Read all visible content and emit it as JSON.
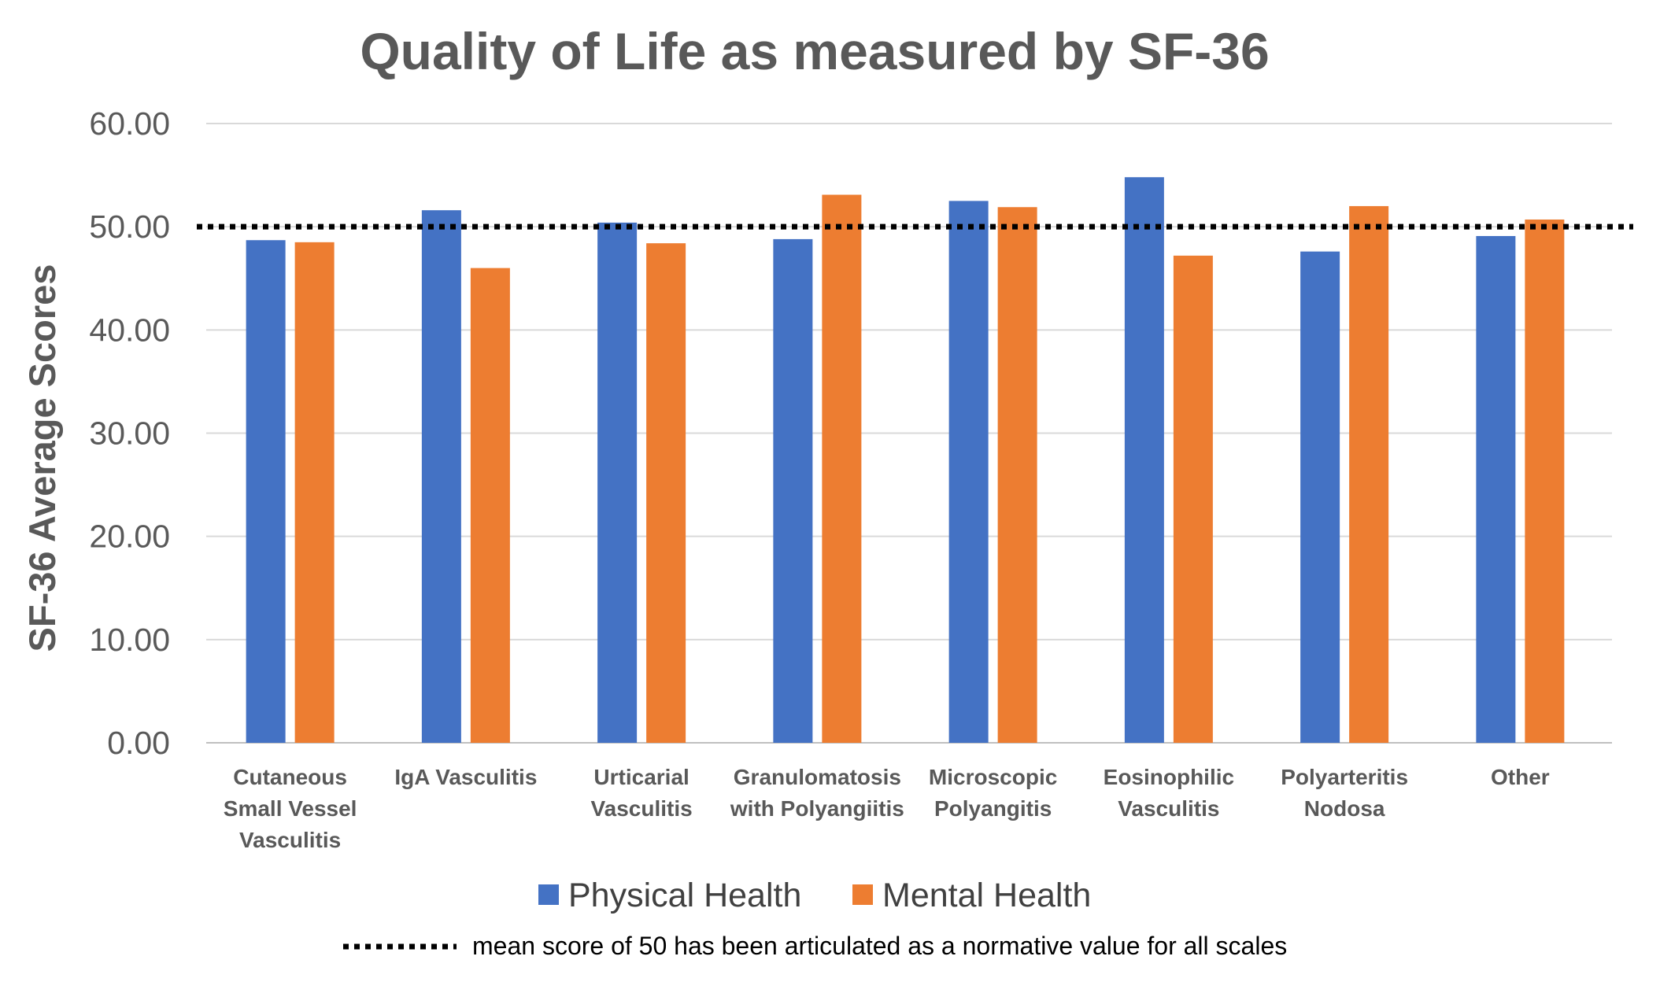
{
  "chart_data": {
    "type": "bar",
    "title": "Quality of Life as measured by SF-36",
    "xlabel": "",
    "ylabel": "SF-36 Average Scores",
    "ylim": [
      0,
      60
    ],
    "yticks": [
      "0.00",
      "10.00",
      "20.00",
      "30.00",
      "40.00",
      "50.00",
      "60.00"
    ],
    "grid": true,
    "legend_position": "bottom",
    "categories": [
      [
        "Cutaneous",
        "Small Vessel",
        "Vasculitis"
      ],
      [
        "IgA Vasculitis"
      ],
      [
        "Urticarial",
        "Vasculitis"
      ],
      [
        "Granulomatosis",
        "with Polyangiitis"
      ],
      [
        "Microscopic",
        "Polyangitis"
      ],
      [
        "Eosinophilic",
        "Vasculitis"
      ],
      [
        "Polyarteritis",
        "Nodosa"
      ],
      [
        "Other"
      ]
    ],
    "series": [
      {
        "name": "Physical Health",
        "color": "#4472C4",
        "values": [
          48.7,
          51.6,
          50.4,
          48.8,
          52.5,
          54.8,
          47.6,
          49.1
        ]
      },
      {
        "name": "Mental Health",
        "color": "#ED7D31",
        "values": [
          48.5,
          46.0,
          48.4,
          53.1,
          51.9,
          47.2,
          52.0,
          50.7
        ]
      }
    ],
    "reference_line": {
      "value": 50,
      "style": "dotted",
      "color": "#000000",
      "label": "mean score of 50 has been articulated as a normative value for all scales"
    }
  }
}
